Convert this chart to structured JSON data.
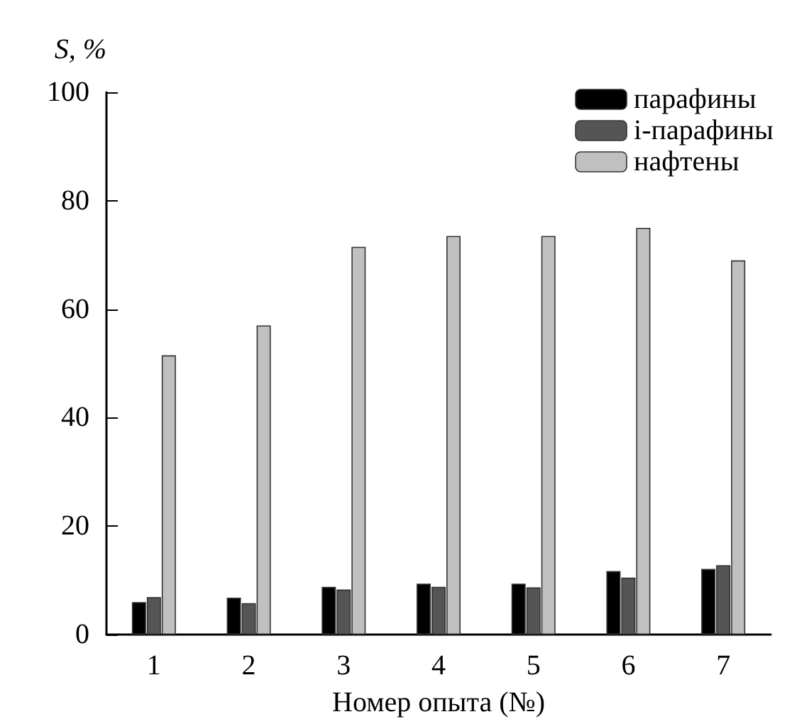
{
  "chart_data": {
    "type": "bar",
    "ylabel": "S, %",
    "xlabel": "Номер опыта (№)",
    "categories": [
      "1",
      "2",
      "3",
      "4",
      "5",
      "6",
      "7"
    ],
    "series": [
      {
        "name": "парафины",
        "color": "#000000",
        "values": [
          6.0,
          6.8,
          8.8,
          9.4,
          9.4,
          11.7,
          12.1
        ]
      },
      {
        "name": "i-парафины",
        "color": "#555555",
        "values": [
          6.9,
          5.8,
          8.3,
          8.8,
          8.7,
          10.5,
          12.8
        ]
      },
      {
        "name": "нафтены",
        "color": "#c0c0c0",
        "values": [
          51.5,
          57,
          71.5,
          73.5,
          73.5,
          75,
          69
        ]
      }
    ],
    "ylim": [
      0,
      100
    ],
    "yticks": [
      0,
      20,
      40,
      60,
      80,
      100
    ],
    "grid": false,
    "legend": "top right"
  }
}
